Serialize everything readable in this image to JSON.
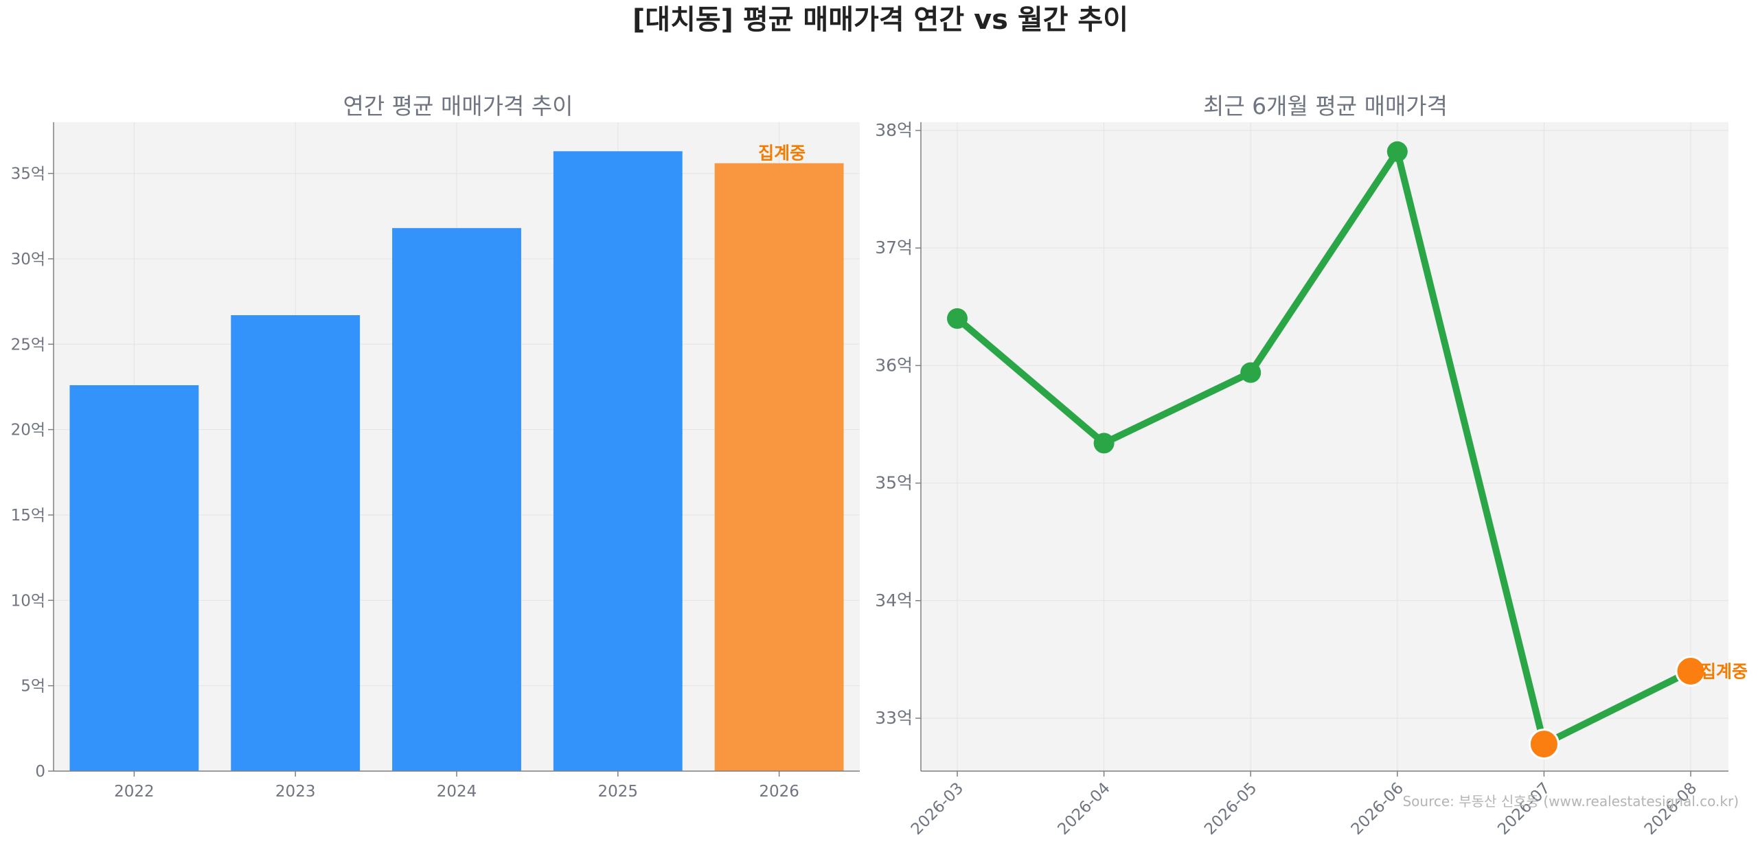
{
  "title": "[대치동] 평균 매매가격 연간 vs 월간 추이",
  "source": "Source: 부동산 신호등 (www.realestatesignal.co.kr)",
  "colors": {
    "bar": "#3393fb",
    "bar_partial": "#f99740",
    "line": "#2ba647",
    "point": "#2ba647",
    "point_partial": "#fb7e11",
    "annotation": "#f57c00",
    "plot_bg": "#f3f3f3",
    "grid": "#e3e3e3"
  },
  "chart_data": [
    {
      "type": "bar",
      "title": "연간 평균 매매가격 추이",
      "categories": [
        "2022",
        "2023",
        "2024",
        "2025",
        "2026"
      ],
      "values": [
        22.6,
        26.7,
        31.8,
        36.3,
        35.6
      ],
      "ylim": [
        0,
        38
      ],
      "yticks": [
        0,
        5,
        10,
        15,
        20,
        25,
        30,
        35
      ],
      "ytick_labels": [
        "0",
        "5억",
        "10억",
        "15억",
        "20억",
        "25억",
        "30억",
        "35억"
      ],
      "partial_index": 4,
      "annotation": "집계중",
      "grid": true
    },
    {
      "type": "line",
      "title": "최근 6개월 평균 매매가격",
      "categories": [
        "2026-03",
        "2026-04",
        "2026-05",
        "2026-06",
        "2026-07",
        "2026-08"
      ],
      "values": [
        36.4,
        35.34,
        35.94,
        37.82,
        32.78,
        33.4
      ],
      "ylim": [
        32.55,
        38.07
      ],
      "yticks": [
        33,
        34,
        35,
        36,
        37,
        38
      ],
      "ytick_labels": [
        "33억",
        "34억",
        "35억",
        "36억",
        "37억",
        "38억"
      ],
      "partial_indices": [
        4,
        5
      ],
      "annotation": "집계중",
      "grid": true
    }
  ]
}
